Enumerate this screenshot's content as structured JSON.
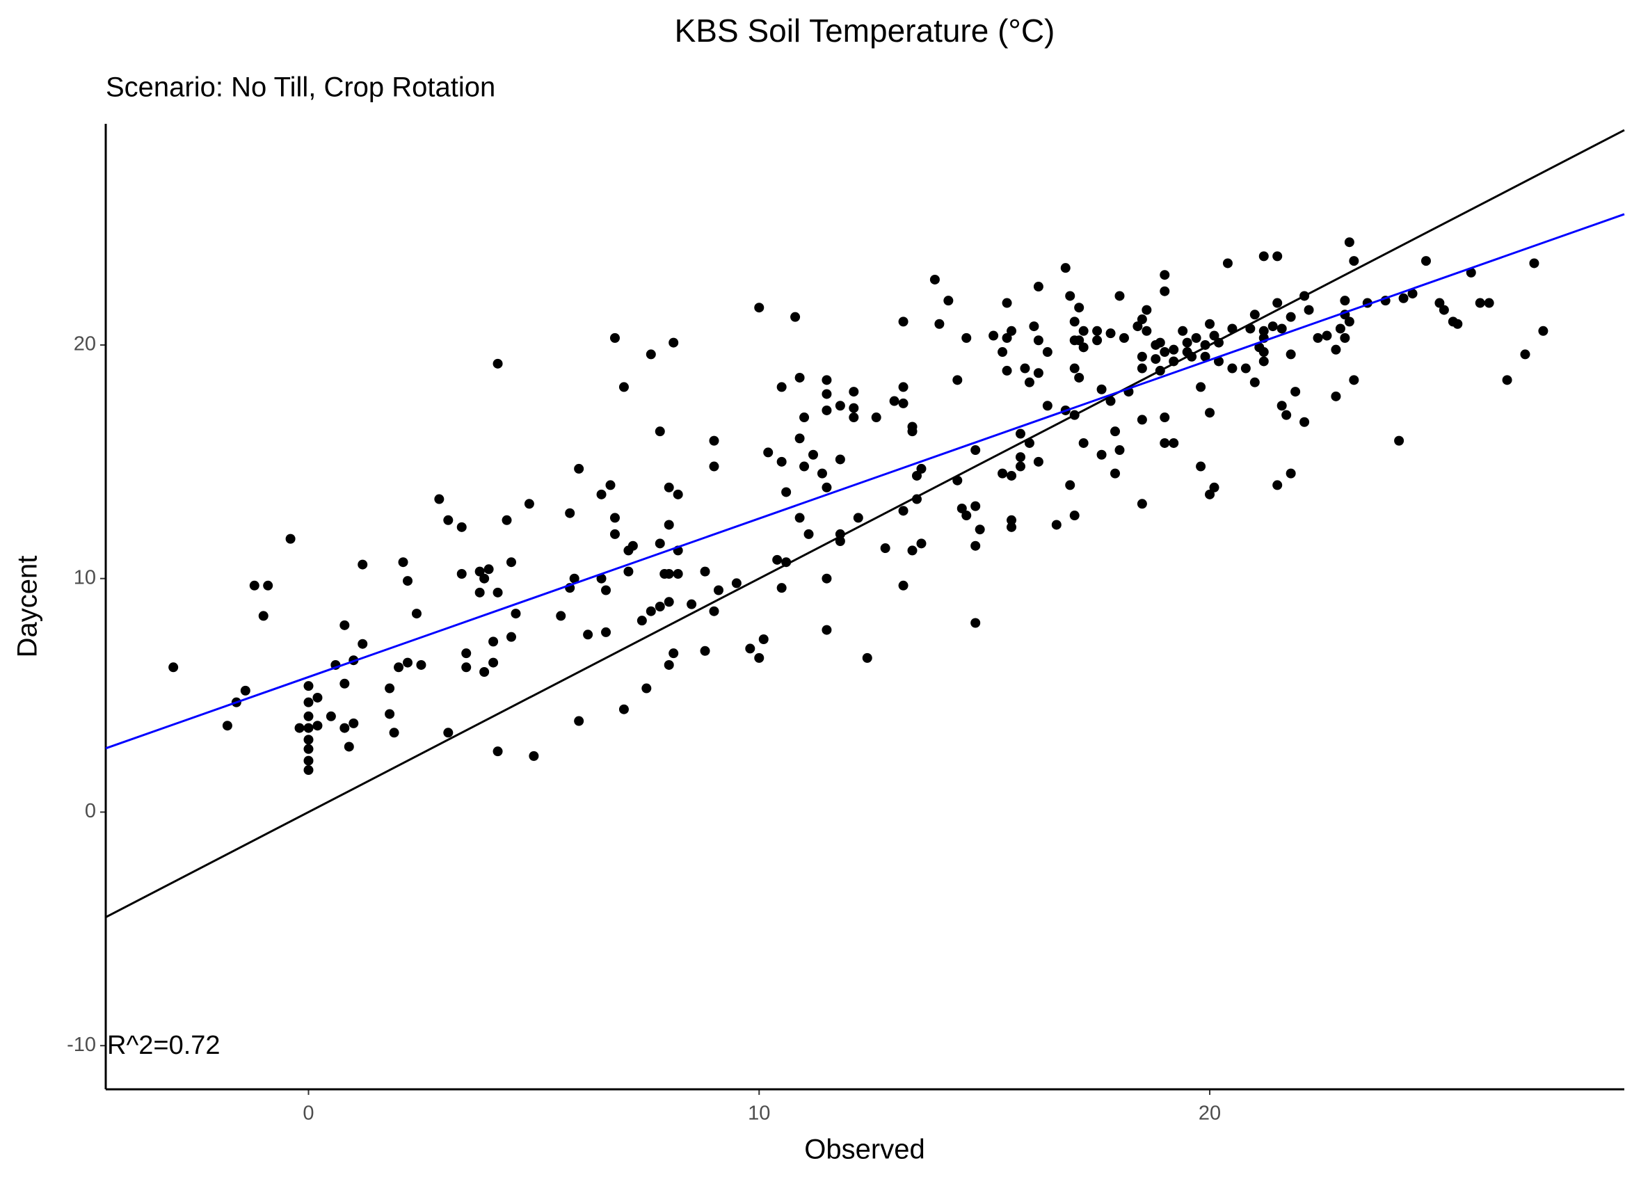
{
  "chart_data": {
    "type": "scatter",
    "title": "KBS Soil Temperature (°C)",
    "subtitle": "Scenario: No Till, Crop Rotation",
    "x_label": "Observed",
    "y_label": "Daycent",
    "annotation": "R^2=0.72",
    "color": "#000000",
    "xlim": [
      -4.5,
      29.2
    ],
    "ylim": [
      -11.87,
      29.47
    ],
    "xticks": [
      0,
      10,
      20
    ],
    "yticks": [
      -10,
      0,
      10,
      20
    ],
    "grid": false,
    "lines": [
      {
        "color": "#000000",
        "x": [
          -4.5,
          29.2
        ],
        "y": [
          -4.5,
          29.2
        ]
      },
      {
        "color": "#0000ff",
        "x": [
          -4.5,
          29.2
        ],
        "y": [
          2.73,
          25.6
        ]
      }
    ],
    "x": [
      -3.0,
      -1.8,
      -1.6,
      -1.4,
      -1.2,
      -0.9,
      -1.0,
      -0.4,
      0,
      0,
      0,
      0,
      0,
      0,
      0,
      0,
      -0.2,
      0.2,
      0.2,
      0.5,
      0.6,
      0.8,
      0.8,
      0.8,
      0.9,
      1.0,
      1.0,
      1.2,
      1.2,
      1.8,
      1.8,
      1.9,
      2.0,
      2.2,
      2.1,
      2.2,
      2.4,
      2.5,
      2.9,
      3.1,
      3.1,
      3.4,
      3.4,
      3.5,
      3.5,
      3.8,
      3.8,
      3.9,
      4.0,
      3.9,
      4.1,
      4.1,
      4.2,
      4.2,
      4.2,
      4.4,
      4.5,
      4.5,
      4.6,
      4.9,
      5.0,
      5.6,
      5.8,
      5.8,
      5.9,
      6.0,
      6.0,
      6.2,
      6.5,
      6.5,
      6.6,
      6.6,
      6.7,
      6.8,
      6.8,
      6.8,
      7.0,
      7.0,
      7.1,
      7.2,
      7.1,
      7.4,
      7.5,
      7.6,
      7.6,
      7.8,
      7.8,
      7.8,
      7.9,
      8.0,
      8.0,
      8.0,
      8.0,
      8.0,
      8.1,
      8.1,
      8.2,
      8.2,
      8.2,
      8.5,
      8.8,
      8.8,
      9.0,
      9.0,
      9.0,
      9.1,
      9.5,
      9.8,
      10.0,
      10.0,
      10.1,
      10.2,
      10.4,
      10.5,
      10.5,
      10.5,
      10.6,
      10.6,
      10.8,
      10.9,
      10.9,
      10.9,
      11.0,
      11.0,
      11.1,
      11.2,
      11.4,
      11.5,
      11.5,
      11.5,
      11.5,
      11.5,
      11.5,
      11.8,
      11.8,
      11.8,
      11.8,
      12.1,
      12.1,
      12.1,
      12.2,
      12.4,
      12.6,
      12.8,
      13.0,
      13.2,
      13.2,
      13.2,
      13.2,
      13.2,
      13.4,
      13.4,
      13.4,
      13.5,
      13.5,
      13.6,
      13.6,
      13.9,
      14.0,
      14.2,
      14.4,
      14.4,
      14.5,
      14.6,
      14.6,
      14.8,
      14.8,
      14.8,
      14.8,
      14.9,
      15.2,
      15.4,
      15.4,
      15.5,
      15.5,
      15.5,
      15.6,
      15.6,
      15.6,
      15.6,
      15.8,
      15.8,
      15.8,
      15.9,
      16.0,
      16.0,
      16.1,
      16.2,
      16.2,
      16.2,
      16.2,
      16.4,
      16.4,
      16.6,
      16.8,
      16.8,
      16.9,
      16.9,
      17.0,
      17.0,
      17.0,
      17.0,
      17.0,
      17.1,
      17.1,
      17.1,
      17.2,
      17.2,
      17.2,
      17.5,
      17.5,
      17.6,
      17.6,
      17.8,
      17.8,
      17.9,
      17.9,
      18.0,
      18.0,
      18.1,
      18.2,
      18.4,
      18.5,
      18.5,
      18.5,
      18.5,
      18.5,
      18.6,
      18.6,
      18.8,
      18.8,
      18.9,
      18.9,
      19.0,
      19.0,
      19.0,
      19.0,
      19.0,
      19.2,
      19.2,
      19.2,
      19.4,
      19.5,
      19.5,
      19.6,
      19.7,
      19.8,
      19.8,
      19.9,
      19.9,
      20.0,
      20.0,
      20.0,
      20.1,
      20.1,
      20.2,
      20.2,
      20.4,
      20.5,
      20.5,
      20.8,
      20.9,
      21.0,
      21.0,
      21.1,
      21.2,
      21.2,
      21.2,
      21.2,
      21.2,
      21.4,
      21.5,
      21.5,
      21.5,
      21.6,
      21.6,
      21.7,
      21.8,
      21.8,
      21.8,
      21.9,
      22.1,
      22.1,
      22.2,
      22.4,
      22.6,
      22.8,
      22.8,
      22.9,
      23.0,
      23.0,
      23.0,
      23.1,
      23.1,
      23.2,
      23.2,
      23.5,
      23.9,
      24.2,
      24.3,
      24.5,
      24.8,
      25.1,
      25.2,
      25.4,
      25.5,
      25.8,
      26.0,
      26.2,
      26.6,
      27.0,
      27.2,
      27.4
    ],
    "values": [
      6.2,
      3.7,
      4.7,
      5.2,
      9.7,
      9.7,
      8.4,
      11.7,
      5.4,
      4.7,
      4.1,
      3.6,
      3.1,
      2.7,
      2.2,
      1.8,
      3.6,
      4.9,
      3.7,
      4.1,
      6.3,
      5.5,
      8.0,
      3.6,
      2.8,
      6.5,
      3.8,
      10.6,
      7.2,
      5.3,
      4.2,
      3.4,
      6.2,
      6.4,
      10.7,
      9.9,
      8.5,
      6.3,
      13.4,
      12.5,
      3.4,
      12.2,
      10.2,
      6.8,
      6.2,
      10.3,
      9.4,
      6.0,
      10.4,
      10.0,
      7.3,
      6.4,
      19.2,
      9.4,
      2.6,
      12.5,
      10.7,
      7.5,
      8.5,
      13.2,
      2.4,
      8.4,
      12.8,
      9.6,
      10.0,
      14.7,
      3.9,
      7.6,
      13.6,
      10.0,
      9.5,
      7.7,
      14.0,
      20.3,
      12.6,
      11.9,
      18.2,
      4.4,
      11.2,
      11.4,
      10.3,
      8.2,
      5.3,
      19.6,
      8.6,
      16.3,
      11.5,
      8.8,
      10.2,
      13.9,
      12.3,
      10.2,
      9.0,
      6.3,
      20.1,
      6.8,
      13.6,
      11.2,
      10.2,
      8.9,
      10.3,
      6.9,
      15.9,
      14.8,
      8.6,
      9.5,
      9.8,
      7.0,
      21.6,
      6.6,
      7.4,
      15.4,
      10.8,
      18.2,
      15.0,
      9.6,
      13.7,
      10.7,
      21.2,
      18.6,
      16.0,
      12.6,
      14.8,
      16.9,
      11.9,
      15.3,
      14.5,
      18.5,
      17.9,
      17.2,
      13.9,
      10.0,
      7.8,
      17.4,
      15.1,
      11.9,
      11.6,
      18.0,
      17.3,
      16.9,
      12.6,
      6.6,
      16.9,
      11.3,
      17.6,
      21.0,
      18.2,
      17.5,
      12.9,
      9.7,
      16.5,
      16.3,
      11.2,
      13.4,
      14.4,
      14.7,
      11.5,
      22.8,
      20.9,
      21.9,
      14.2,
      18.5,
      13.0,
      12.7,
      20.3,
      15.5,
      13.1,
      11.4,
      8.1,
      12.1,
      20.4,
      19.7,
      14.5,
      21.8,
      20.3,
      18.9,
      14.4,
      20.6,
      12.5,
      12.2,
      16.2,
      15.2,
      14.8,
      19.0,
      15.8,
      18.4,
      20.8,
      22.5,
      20.2,
      18.8,
      15.0,
      19.7,
      17.4,
      12.3,
      23.3,
      17.2,
      22.1,
      14.0,
      21.0,
      20.2,
      19.0,
      17.0,
      12.7,
      21.6,
      20.2,
      18.6,
      19.9,
      15.8,
      20.6,
      20.2,
      20.6,
      15.3,
      18.1,
      17.6,
      20.5,
      14.5,
      16.3,
      22.1,
      15.5,
      20.3,
      18.0,
      20.8,
      21.1,
      13.2,
      16.8,
      19.5,
      19.0,
      21.5,
      20.6,
      20.0,
      19.4,
      18.9,
      20.1,
      23.0,
      22.3,
      19.7,
      16.9,
      15.8,
      19.3,
      19.8,
      15.8,
      20.6,
      19.7,
      20.1,
      19.5,
      20.3,
      18.2,
      14.8,
      20.0,
      19.5,
      20.9,
      17.1,
      13.6,
      20.4,
      13.9,
      20.1,
      19.3,
      23.5,
      20.7,
      19.0,
      19.0,
      20.7,
      21.3,
      18.4,
      19.9,
      23.8,
      20.6,
      20.3,
      19.7,
      19.3,
      20.8,
      23.8,
      21.8,
      14.0,
      20.7,
      17.4,
      17.0,
      21.2,
      19.6,
      14.5,
      18.0,
      16.7,
      22.1,
      21.5,
      20.3,
      20.4,
      19.8,
      17.8,
      20.7,
      21.9,
      20.3,
      21.3,
      21.0,
      24.4,
      23.6,
      18.5,
      21.8,
      21.9,
      15.9,
      22.0,
      22.2,
      23.6,
      21.8,
      21.5,
      21.0,
      20.9,
      23.1,
      21.8,
      21.8,
      18.5,
      19.6,
      23.5,
      20.6
    ]
  }
}
